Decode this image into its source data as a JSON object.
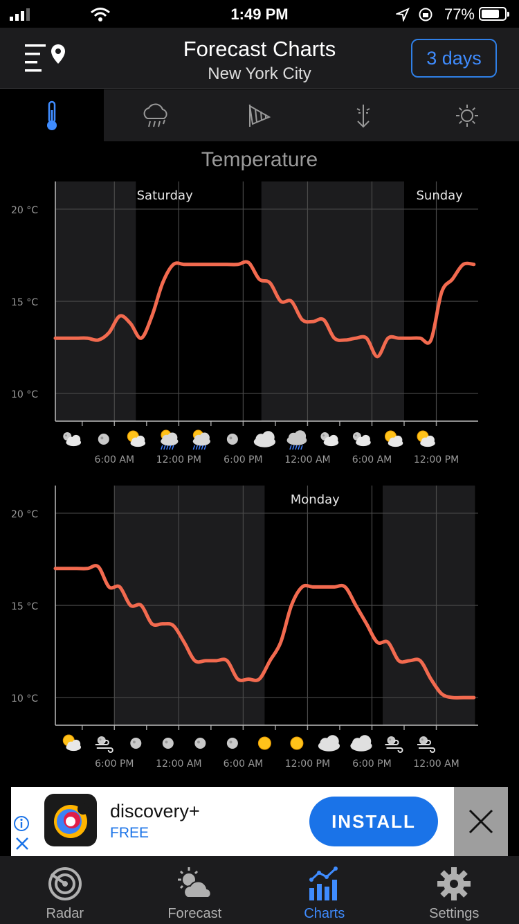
{
  "status_bar": {
    "time": "1:49 PM",
    "battery_pct": "77%",
    "battery_level": 0.77
  },
  "header": {
    "title": "Forecast Charts",
    "subtitle": "New York City",
    "days_button": "3 days"
  },
  "tabs": [
    {
      "name": "temperature",
      "icon": "thermometer-icon",
      "active": true
    },
    {
      "name": "precipitation",
      "icon": "rain-cloud-icon",
      "active": false
    },
    {
      "name": "wind",
      "icon": "windsock-icon",
      "active": false
    },
    {
      "name": "pressure",
      "icon": "pressure-arrow-icon",
      "active": false
    },
    {
      "name": "uv",
      "icon": "sun-icon",
      "active": false
    }
  ],
  "section_title": "Temperature",
  "colors": {
    "line": "#f26a4f",
    "accent": "#3f8cff",
    "night_band": "#1c1c1e"
  },
  "chart_data": [
    {
      "type": "line",
      "ylim": [
        8.5,
        21.5
      ],
      "yticks": [
        "20 °C",
        "15 °C",
        "10 °C"
      ],
      "ytick_values": [
        20,
        15,
        10
      ],
      "x_hours": [
        0,
        1,
        2,
        3,
        4,
        5,
        6,
        7,
        8,
        9,
        10,
        11,
        12,
        13,
        14,
        15,
        16,
        17,
        18,
        19,
        20,
        21,
        22,
        23,
        24,
        25,
        26,
        27,
        28,
        29,
        30,
        31,
        32,
        33,
        34,
        35,
        36,
        37,
        38,
        39
      ],
      "values": [
        13,
        13,
        13,
        13,
        12.9,
        13.3,
        14.2,
        13.8,
        13,
        14.2,
        16,
        17,
        17,
        17,
        17,
        17,
        17,
        17,
        17.1,
        16.2,
        16,
        15,
        15,
        14,
        13.9,
        14,
        13,
        12.9,
        13,
        13,
        12,
        13,
        13,
        13,
        13,
        12.9,
        15.5,
        16.2,
        17,
        17
      ],
      "day_labels": [
        {
          "label": "Saturday",
          "hour": 10.2
        },
        {
          "label": "Sunday",
          "hour": 35.8
        }
      ],
      "night_bands": [
        [
          0,
          7.5
        ],
        [
          19.2,
          32.5
        ]
      ],
      "xticks": [
        {
          "label": "6:00 AM",
          "hour": 5.5
        },
        {
          "label": "12:00 PM",
          "hour": 11.5
        },
        {
          "label": "6:00 PM",
          "hour": 17.5
        },
        {
          "label": "12:00 AM",
          "hour": 23.5
        },
        {
          "label": "6:00 AM",
          "hour": 29.5
        },
        {
          "label": "12:00 PM",
          "hour": 35.5
        }
      ],
      "weather_icons": [
        "partly-cloudy-night-icon",
        "moon-icon",
        "partly-sunny-icon",
        "sun-rain-icon",
        "sun-rain-icon",
        "moon-icon",
        "cloudy-icon",
        "rain-icon",
        "partly-cloudy-night-icon",
        "partly-cloudy-night-icon",
        "partly-sunny-icon",
        "partly-sunny-icon"
      ]
    },
    {
      "type": "line",
      "ylim": [
        8.5,
        21.5
      ],
      "yticks": [
        "20 °C",
        "15 °C",
        "10 °C"
      ],
      "ytick_values": [
        20,
        15,
        10
      ],
      "x_hours": [
        0,
        1,
        2,
        3,
        4,
        5,
        6,
        7,
        8,
        9,
        10,
        11,
        12,
        13,
        14,
        15,
        16,
        17,
        18,
        19,
        20,
        21,
        22,
        23,
        24,
        25,
        26,
        27,
        28,
        29,
        30,
        31,
        32,
        33,
        34,
        35,
        36,
        37,
        38,
        39
      ],
      "values": [
        17,
        17,
        17,
        17,
        17.1,
        16,
        16,
        15,
        15,
        14,
        14,
        13.9,
        13,
        12,
        12,
        12,
        12,
        11,
        11,
        11,
        12,
        13,
        15,
        16,
        16,
        16,
        16,
        16,
        15,
        14,
        13,
        13,
        12,
        12,
        12,
        11,
        10.2,
        10,
        10,
        10
      ],
      "day_labels": [
        {
          "label": "Monday",
          "hour": 24.2
        }
      ],
      "night_bands": [
        [
          5.5,
          19.5
        ],
        [
          30.5,
          39.1
        ]
      ],
      "xticks": [
        {
          "label": "6:00 PM",
          "hour": 5.5
        },
        {
          "label": "12:00 AM",
          "hour": 11.5
        },
        {
          "label": "6:00 AM",
          "hour": 17.5
        },
        {
          "label": "12:00 PM",
          "hour": 23.5
        },
        {
          "label": "6:00 PM",
          "hour": 29.5
        },
        {
          "label": "12:00 AM",
          "hour": 35.5
        }
      ],
      "weather_icons": [
        "partly-sunny-icon",
        "windy-night-icon",
        "moon-icon",
        "moon-icon",
        "moon-icon",
        "moon-icon",
        "sun-icon",
        "sun-icon",
        "cloudy-icon",
        "cloudy-icon",
        "windy-night-icon",
        "windy-night-icon"
      ]
    }
  ],
  "ad": {
    "app_name": "discovery+",
    "price": "FREE",
    "install_label": "INSTALL"
  },
  "bottom_nav": [
    {
      "label": "Radar",
      "icon": "radar-icon",
      "active": false
    },
    {
      "label": "Forecast",
      "icon": "forecast-icon",
      "active": false
    },
    {
      "label": "Charts",
      "icon": "charts-icon",
      "active": true
    },
    {
      "label": "Settings",
      "icon": "gear-icon",
      "active": false
    }
  ]
}
